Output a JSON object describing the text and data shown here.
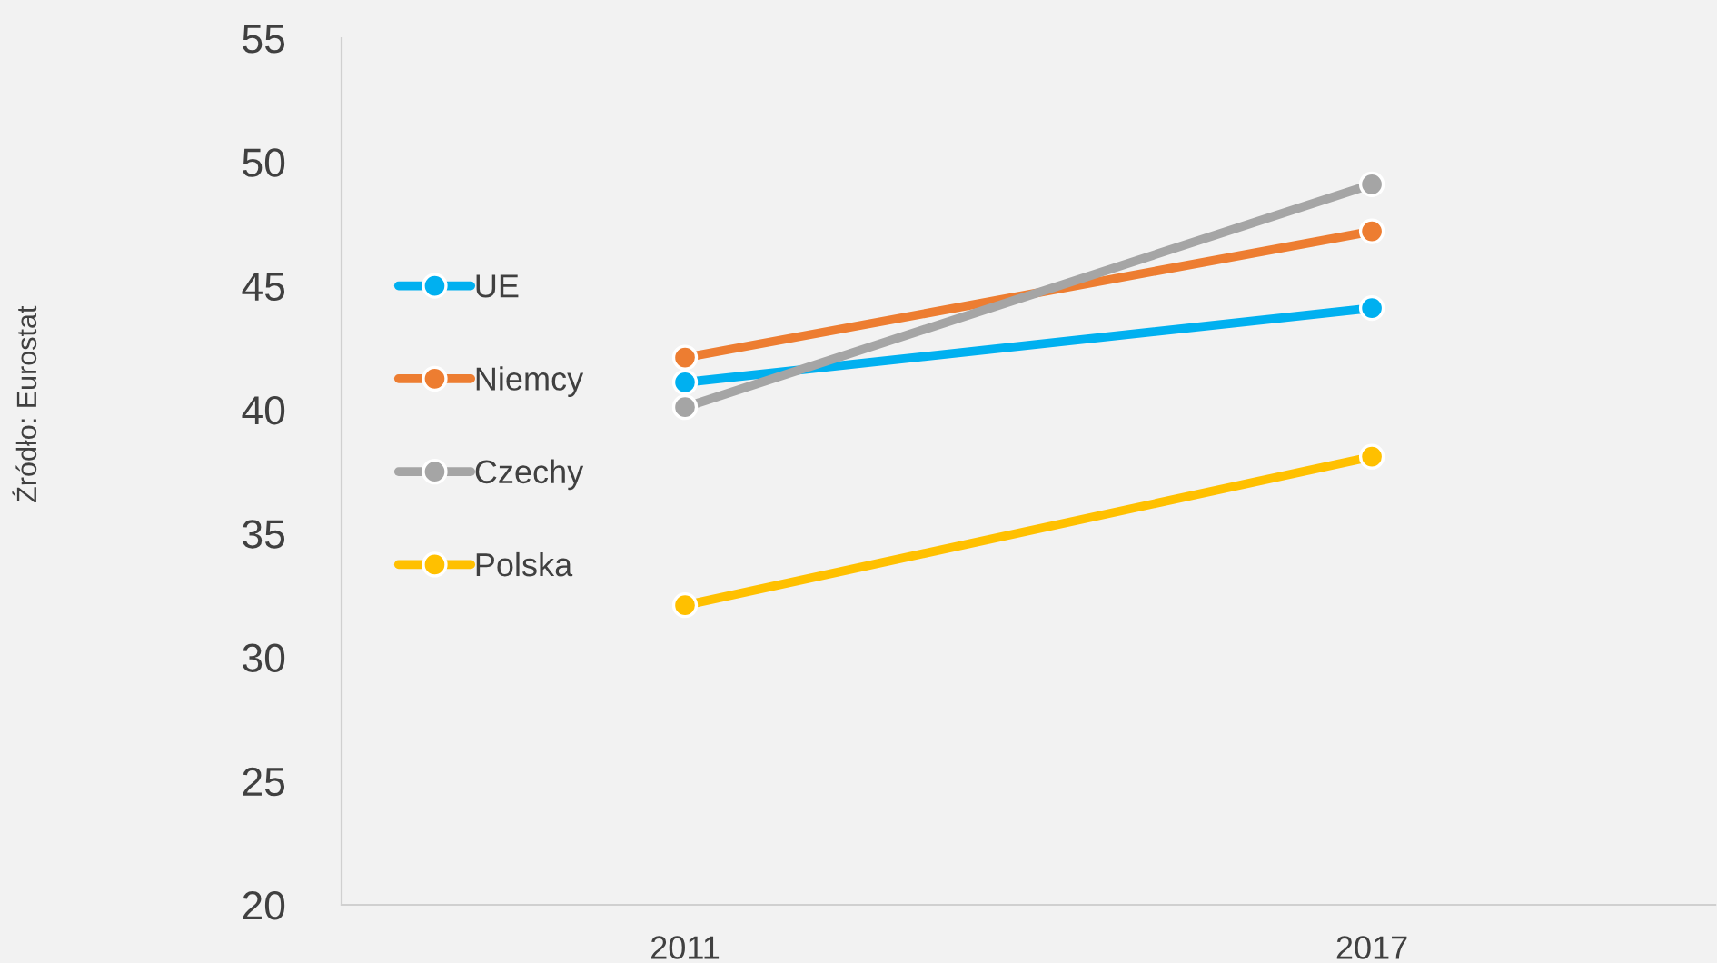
{
  "chart_data": {
    "type": "line",
    "x": [
      2011,
      2017
    ],
    "series": [
      {
        "name": "UE",
        "color": "#00b0f0",
        "values": [
          41.1,
          44.1
        ]
      },
      {
        "name": "Niemcy",
        "color": "#ed7d31",
        "values": [
          42.1,
          47.2
        ]
      },
      {
        "name": "Czechy",
        "color": "#a5a5a5",
        "values": [
          40.1,
          49.1
        ]
      },
      {
        "name": "Polska",
        "color": "#ffc000",
        "values": [
          32.1,
          38.1
        ]
      }
    ],
    "xlim": [
      2008,
      2020
    ],
    "xticks": [
      2011,
      2017
    ],
    "ylim": [
      20,
      55
    ],
    "yticks": [
      20,
      25,
      30,
      35,
      40,
      45,
      50,
      55
    ],
    "annotations": [
      "Źródło: Eurostat"
    ],
    "marker": "circle",
    "line_style": "solid",
    "legend": "left",
    "grid": false
  }
}
